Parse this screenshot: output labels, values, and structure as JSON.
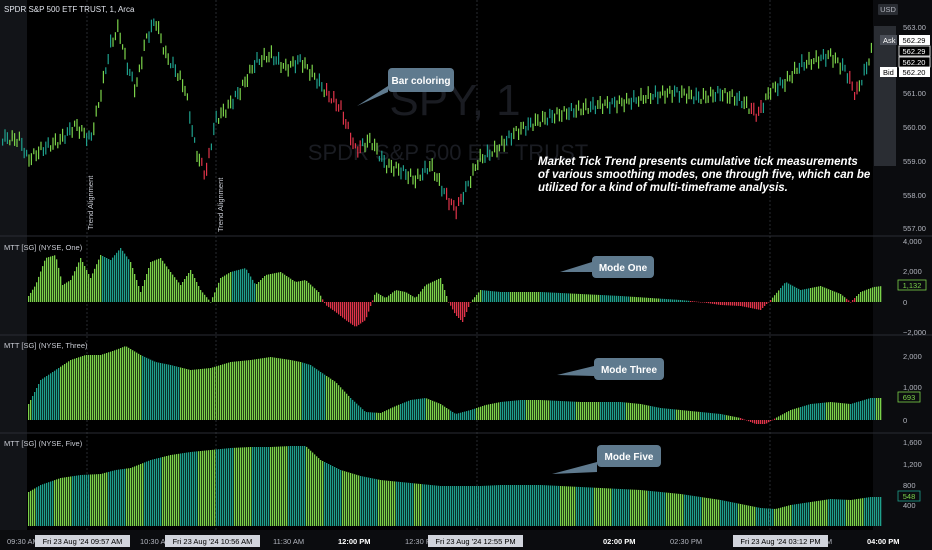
{
  "header": {
    "symbol_title": "SPDR S&P 500 ETF TRUST, 1, Arca",
    "currency": "USD"
  },
  "watermark": {
    "ticker": "SPY, 1",
    "name": "SPDR S&P 500 ETF TRUST"
  },
  "price_pane": {
    "axis_ticks": [
      "563.00",
      "562.00",
      "561.00",
      "560.00",
      "559.00",
      "558.00",
      "557.00"
    ],
    "ask_label": "Ask",
    "ask_value": "562.29",
    "last_value": "562.29",
    "mid_value": "562.20",
    "bid_label": "Bid",
    "bid_value": "562.20",
    "trend_alignment_1": "Trend Alignment",
    "trend_alignment_2": "Trend Alignment",
    "callout": "Bar coloring",
    "description_lines": [
      "Market Tick Trend presents cumulative tick measurements",
      "of various smoothing modes, one through five, which can be",
      "utilized for a kind of multi-timeframe analysis."
    ]
  },
  "pane_one": {
    "label": "MTT [SG] (NYSE, One)",
    "axis_ticks": [
      "4,000",
      "2,000",
      "0",
      "−2,000"
    ],
    "value_tag": "1,132",
    "callout": "Mode One"
  },
  "pane_three": {
    "label": "MTT [SG] (NYSE, Three)",
    "axis_ticks": [
      "2,000",
      "1,000",
      "0"
    ],
    "value_tag": "693",
    "callout": "Mode Three"
  },
  "pane_five": {
    "label": "MTT [SG] (NYSE, Five)",
    "axis_ticks": [
      "1,600",
      "1,200",
      "800",
      "400"
    ],
    "value_tag": "548",
    "callout": "Mode Five"
  },
  "time_axis": {
    "labels": [
      {
        "text": "09:30 AM",
        "bold": false
      },
      {
        "text": "10:30 AM",
        "bold": false
      },
      {
        "text": "11:30 AM",
        "bold": false
      },
      {
        "text": "12:00 PM",
        "bold": true
      },
      {
        "text": "12:30 PM",
        "bold": false
      },
      {
        "text": "02:00 PM",
        "bold": true
      },
      {
        "text": "02:30 PM",
        "bold": false
      },
      {
        "text": "04:00 PM",
        "bold": true
      }
    ],
    "date_tags": [
      "Fri 23 Aug '24   09:57 AM",
      "Fri 23 Aug '24   10:56 AM",
      "Fri 23 Aug '24   12:55 PM",
      "Fri 23 Aug '24   03:12 PM"
    ],
    "extra_labels": [
      "01:00 PM",
      "03:00 PM",
      "03:30 PM"
    ]
  },
  "colors": {
    "bull_green": "#7bd24a",
    "teal": "#1fa08c",
    "bear_red": "#e0344a",
    "callout_bg": "#5f7a8e",
    "vline": "#3a3d45"
  }
}
